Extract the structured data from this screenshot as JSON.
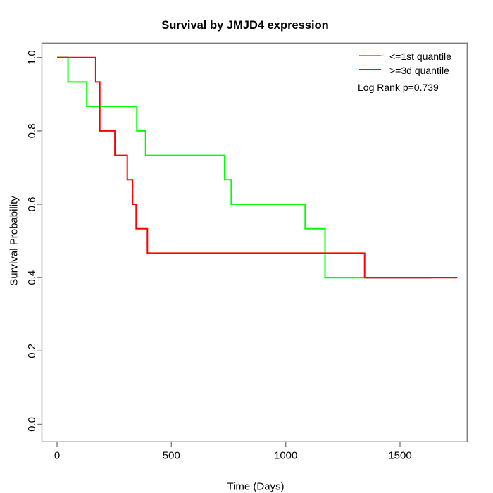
{
  "chart_data": {
    "type": "line",
    "subtype": "kaplan-meier-step-curves",
    "title": "Survival by JMJD4 expression",
    "xlabel": "Time (Days)",
    "ylabel": "Survival Probability",
    "xlim": [
      0,
      1790
    ],
    "ylim": [
      0.0,
      1.0
    ],
    "grid": false,
    "xticks": {
      "values": [
        0,
        500,
        1000,
        1500
      ],
      "labels": [
        "0",
        "500",
        "1000",
        "1500"
      ]
    },
    "yticks": {
      "values": [
        0.0,
        0.2,
        0.4,
        0.6,
        0.8,
        1.0
      ],
      "labels": [
        "0.0",
        "0.2",
        "0.4",
        "0.6",
        "0.8",
        "1.0"
      ]
    },
    "legend": {
      "position": "top-right",
      "entries": [
        {
          "label": "<=1st quantile",
          "color": "#00ff00"
        },
        {
          "label": ">=3d quantile",
          "color": "#ff0000"
        }
      ]
    },
    "annotation": "Log Rank p=0.739",
    "series": [
      {
        "name": "<=1st quantile",
        "color": "#00ff00",
        "points": [
          [
            0,
            1.0
          ],
          [
            48,
            0.9333
          ],
          [
            130,
            0.8667
          ],
          [
            349,
            0.8
          ],
          [
            387,
            0.7333
          ],
          [
            733,
            0.6667
          ],
          [
            762,
            0.6
          ],
          [
            1085,
            0.5333
          ],
          [
            1172,
            0.4
          ],
          [
            1635,
            0.4
          ]
        ]
      },
      {
        "name": ">=3d quantile",
        "color": "#ff0000",
        "points": [
          [
            0,
            1.0
          ],
          [
            169,
            0.9333
          ],
          [
            187,
            0.8
          ],
          [
            253,
            0.7333
          ],
          [
            307,
            0.6667
          ],
          [
            330,
            0.6
          ],
          [
            346,
            0.5333
          ],
          [
            395,
            0.4667
          ],
          [
            1345,
            0.4
          ],
          [
            1750,
            0.4
          ]
        ]
      }
    ],
    "overlap_segments": [
      {
        "survival": 1.0,
        "t_start": 0,
        "t_end": 48,
        "color": "#b02f00"
      },
      {
        "survival": 0.4,
        "t_start": 1345,
        "t_end": 1635,
        "color": "#b02f00"
      }
    ]
  },
  "colors": {
    "axis": "#7e7e7e",
    "text": "#000000",
    "background": "#ffffff"
  }
}
